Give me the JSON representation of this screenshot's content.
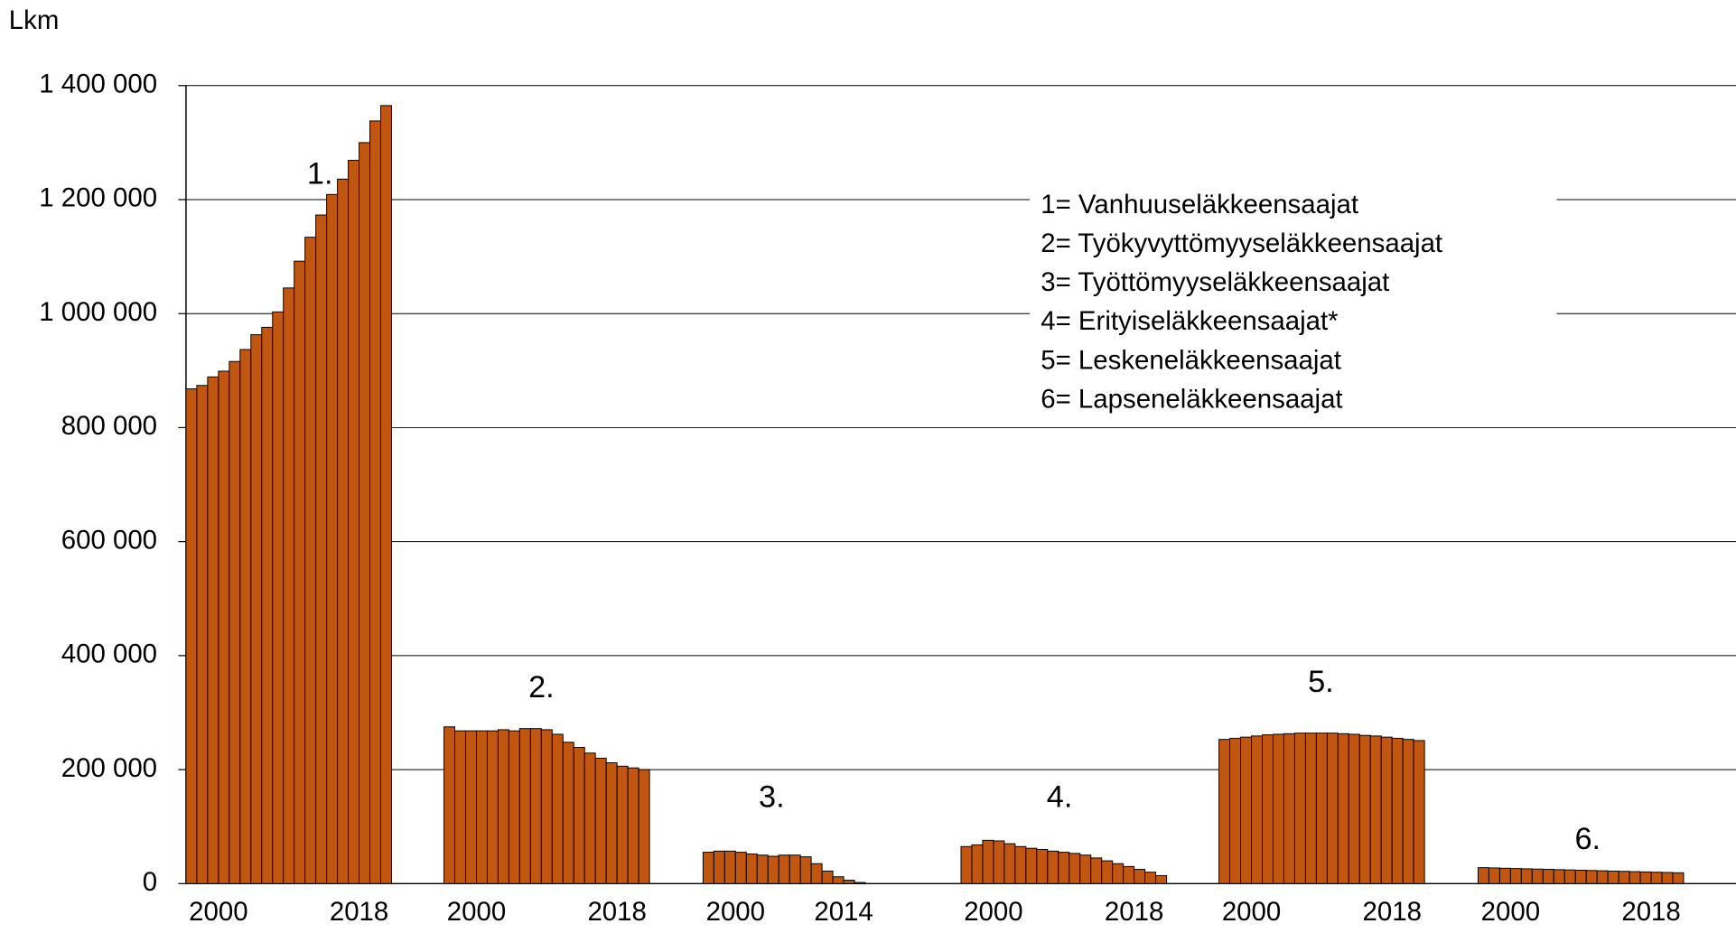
{
  "chart_data": {
    "type": "bar",
    "ylabel": "Lkm",
    "color": "#c0560f",
    "ylim": [
      0,
      1400000
    ],
    "yticks": [
      0,
      {
        "value": 200000,
        "label": "200 000"
      },
      {
        "value": 400000,
        "label": "400 000"
      },
      {
        "value": 600000,
        "label": "600 000"
      },
      {
        "value": 800000,
        "label": "800 000"
      },
      {
        "value": 1000000,
        "label": "1 000 000"
      },
      {
        "value": 1200000,
        "label": "1 200 000"
      },
      {
        "value": 1400000,
        "label": "1 400 000"
      }
    ],
    "grid": true,
    "legend": [
      "1= Vanhuuseläkkeensaajat",
      "2= Työkyvyttömyyseläkkeensaajat",
      "3= Työttömyyseläkkeensaajat",
      "4= Erityiseläkkeensaajat*",
      "5= Leskeneläkkeensaajat",
      "6= Lapseneläkkeensaajat"
    ],
    "groups": [
      {
        "label": "1.",
        "categories": [
          null,
          null,
          null,
          "2000",
          null,
          null,
          null,
          null,
          null,
          null,
          null,
          null,
          null,
          null,
          null,
          null,
          "2018",
          null,
          null
        ],
        "values": [
          868000,
          874000,
          889000,
          899000,
          916000,
          937000,
          963000,
          976000,
          1003000,
          1045000,
          1092000,
          1134000,
          1173000,
          1209000,
          1236000,
          1269000,
          1300000,
          1338000,
          1365000
        ]
      },
      {
        "label": "2.",
        "categories": [
          null,
          null,
          null,
          "2000",
          null,
          null,
          null,
          null,
          null,
          null,
          null,
          null,
          null,
          null,
          null,
          null,
          "2018",
          null,
          null
        ],
        "values": [
          275000,
          268000,
          268000,
          268000,
          268000,
          270000,
          268000,
          272000,
          272000,
          270000,
          262000,
          248000,
          239000,
          229000,
          220000,
          212000,
          206000,
          203000,
          200000
        ]
      },
      {
        "label": "3.",
        "categories": [
          null,
          null,
          null,
          "2000",
          null,
          null,
          null,
          null,
          null,
          null,
          null,
          null,
          null,
          "2014",
          null
        ],
        "values": [
          55000,
          57000,
          57000,
          55000,
          52000,
          50000,
          48000,
          50000,
          50000,
          47000,
          35000,
          22000,
          12000,
          6000,
          2000
        ]
      },
      {
        "label": "4.",
        "categories": [
          null,
          null,
          null,
          "2000",
          null,
          null,
          null,
          null,
          null,
          null,
          null,
          null,
          null,
          null,
          null,
          null,
          "2018",
          null,
          null
        ],
        "values": [
          65000,
          68000,
          76000,
          75000,
          70000,
          65000,
          62000,
          60000,
          57000,
          55000,
          53000,
          50000,
          45000,
          40000,
          35000,
          30000,
          25000,
          20000,
          14000
        ]
      },
      {
        "label": "5.",
        "categories": [
          null,
          null,
          null,
          "2000",
          null,
          null,
          null,
          null,
          null,
          null,
          null,
          null,
          null,
          null,
          null,
          null,
          "2018",
          null,
          null
        ],
        "values": [
          253000,
          255000,
          257000,
          259000,
          261000,
          262000,
          263000,
          264000,
          264000,
          264000,
          264000,
          263000,
          262000,
          260000,
          259000,
          257000,
          255000,
          253000,
          251000
        ]
      },
      {
        "label": "6.",
        "categories": [
          null,
          null,
          null,
          "2000",
          null,
          null,
          null,
          null,
          null,
          null,
          null,
          null,
          null,
          null,
          null,
          null,
          "2018",
          null,
          null
        ],
        "values": [
          28000,
          27500,
          27000,
          26500,
          26000,
          25500,
          25000,
          24500,
          24000,
          23500,
          23000,
          22500,
          22000,
          21500,
          21000,
          20500,
          20000,
          19500,
          19000
        ]
      }
    ]
  }
}
